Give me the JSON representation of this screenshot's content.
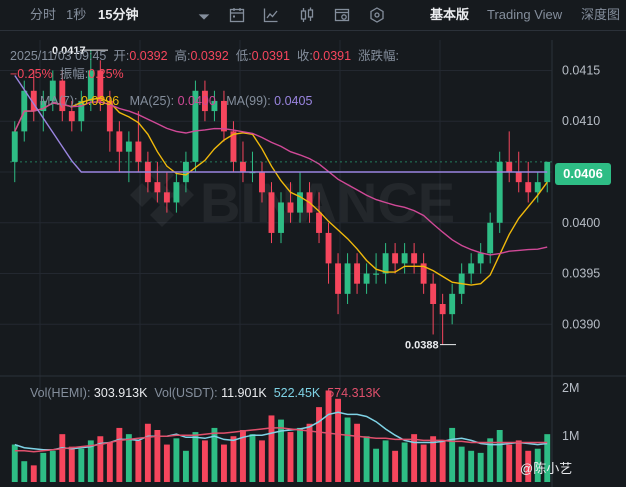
{
  "toolbar": {
    "time_label": "分时",
    "sec_label": "1秒",
    "interval_label": "15分钟",
    "chevron_icon": "chevron-down-icon",
    "icons": [
      "calendar-indicator-icon",
      "line-chart-icon",
      "candlestick-icon",
      "settings-chart-icon",
      "hexagon-settings-icon"
    ],
    "view_basic": "基本版",
    "view_tradingview": "Trading View",
    "view_depth": "深度图"
  },
  "ohlc": {
    "datetime": "2025/11/03 09:45",
    "open_label": "开:",
    "open": "0.0392",
    "high_label": "高:",
    "high": "0.0392",
    "low_label": "低:",
    "low": "0.0391",
    "close_label": "收:",
    "close": "0.0391",
    "change_label": "涨跌幅:",
    "change": "−0.25%",
    "amp_label": "振幅:",
    "amp": "0.25%"
  },
  "ma": {
    "ma7_label": "MA(7):",
    "ma7": "0.0396",
    "ma25_label": "MA(25):",
    "ma25": "0.0400",
    "ma99_label": "MA(99):",
    "ma99": "0.0405"
  },
  "volume": {
    "hemi_label": "Vol(HEMI):",
    "hemi": "303.913K",
    "usdt_label": "Vol(USDT):",
    "usdt": "11.901K",
    "v1": "522.45K",
    "v2": "574.313K"
  },
  "markers": {
    "high": "0.0417",
    "low": "0.0388",
    "current": "0.0406"
  },
  "watermark": "@陈小艺",
  "colors": {
    "up": "#2ebd85",
    "down": "#f6465d",
    "ma7": "#f0b90b",
    "ma25": "#d04997",
    "ma99": "#9a85e0",
    "vol_ma1": "#7fd3e6",
    "vol_ma2": "#e0506c"
  },
  "chart_data": {
    "type": "candlestick",
    "price_axis": [
      "0.0415",
      "0.0410",
      "0.0405",
      "0.0400",
      "0.0395",
      "0.0390"
    ],
    "volume_axis": [
      "2M",
      "1M"
    ],
    "ylim": [
      0.03855,
      0.0418
    ],
    "candles": [
      [
        0.0406,
        0.041,
        0.0404,
        0.0409
      ],
      [
        0.0409,
        0.0414,
        0.0408,
        0.0413
      ],
      [
        0.0413,
        0.0415,
        0.041,
        0.0411
      ],
      [
        0.0411,
        0.0413,
        0.0409,
        0.0412
      ],
      [
        0.0412,
        0.0415,
        0.0411,
        0.0414
      ],
      [
        0.0414,
        0.0415,
        0.041,
        0.0411
      ],
      [
        0.0411,
        0.0412,
        0.0409,
        0.041
      ],
      [
        0.041,
        0.0413,
        0.0409,
        0.0412
      ],
      [
        0.0412,
        0.0417,
        0.0411,
        0.0415
      ],
      [
        0.0415,
        0.0416,
        0.0411,
        0.0412
      ],
      [
        0.0412,
        0.0413,
        0.0407,
        0.0409
      ],
      [
        0.0409,
        0.041,
        0.0405,
        0.0407
      ],
      [
        0.0407,
        0.0409,
        0.0404,
        0.0408
      ],
      [
        0.0408,
        0.0411,
        0.0405,
        0.0406
      ],
      [
        0.0406,
        0.0407,
        0.0403,
        0.0404
      ],
      [
        0.0404,
        0.0406,
        0.0402,
        0.0403
      ],
      [
        0.0403,
        0.0405,
        0.0401,
        0.0402
      ],
      [
        0.0402,
        0.0405,
        0.0401,
        0.0404
      ],
      [
        0.0404,
        0.0407,
        0.0403,
        0.0406
      ],
      [
        0.0406,
        0.0414,
        0.0405,
        0.0413
      ],
      [
        0.0413,
        0.0414,
        0.041,
        0.0411
      ],
      [
        0.0411,
        0.0413,
        0.041,
        0.0412
      ],
      [
        0.0412,
        0.0413,
        0.0408,
        0.0409
      ],
      [
        0.0409,
        0.041,
        0.0405,
        0.0406
      ],
      [
        0.0406,
        0.0408,
        0.0404,
        0.0405
      ],
      [
        0.0405,
        0.0407,
        0.0404,
        0.0405
      ],
      [
        0.0405,
        0.0406,
        0.0402,
        0.0403
      ],
      [
        0.0403,
        0.0404,
        0.0398,
        0.0399
      ],
      [
        0.0399,
        0.0403,
        0.0398,
        0.0402
      ],
      [
        0.0402,
        0.0404,
        0.04,
        0.0401
      ],
      [
        0.0401,
        0.0405,
        0.04,
        0.0403
      ],
      [
        0.0403,
        0.0404,
        0.04,
        0.0401
      ],
      [
        0.0401,
        0.0403,
        0.0398,
        0.0399
      ],
      [
        0.0399,
        0.04,
        0.0394,
        0.0396
      ],
      [
        0.0396,
        0.0397,
        0.0391,
        0.0393
      ],
      [
        0.0393,
        0.0397,
        0.0392,
        0.0396
      ],
      [
        0.0396,
        0.0397,
        0.0393,
        0.0394
      ],
      [
        0.0394,
        0.0396,
        0.0393,
        0.0395
      ],
      [
        0.0395,
        0.0397,
        0.0394,
        0.0395
      ],
      [
        0.0395,
        0.0398,
        0.0394,
        0.0397
      ],
      [
        0.0397,
        0.0398,
        0.0395,
        0.0396
      ],
      [
        0.0396,
        0.0398,
        0.0395,
        0.0397
      ],
      [
        0.0397,
        0.0398,
        0.0395,
        0.0396
      ],
      [
        0.0396,
        0.0397,
        0.0393,
        0.0394
      ],
      [
        0.0394,
        0.0395,
        0.0389,
        0.0392
      ],
      [
        0.0392,
        0.0393,
        0.0388,
        0.0391
      ],
      [
        0.0391,
        0.0394,
        0.039,
        0.0393
      ],
      [
        0.0393,
        0.0396,
        0.0392,
        0.0395
      ],
      [
        0.0395,
        0.0397,
        0.0394,
        0.0396
      ],
      [
        0.0396,
        0.0398,
        0.0395,
        0.0397
      ],
      [
        0.0397,
        0.0401,
        0.0396,
        0.04
      ],
      [
        0.04,
        0.0407,
        0.0399,
        0.0406
      ],
      [
        0.0406,
        0.0409,
        0.0404,
        0.0405
      ],
      [
        0.0405,
        0.0407,
        0.0403,
        0.0404
      ],
      [
        0.0404,
        0.0406,
        0.0402,
        0.0403
      ],
      [
        0.0403,
        0.0405,
        0.0402,
        0.0404
      ],
      [
        0.0404,
        0.0406,
        0.0403,
        0.0406
      ]
    ],
    "volumes": [
      0.36,
      0.2,
      0.16,
      0.28,
      0.3,
      0.46,
      0.34,
      0.32,
      0.4,
      0.44,
      0.38,
      0.52,
      0.46,
      0.4,
      0.56,
      0.5,
      0.36,
      0.42,
      0.3,
      0.48,
      0.4,
      0.52,
      0.36,
      0.44,
      0.5,
      0.46,
      0.4,
      0.64,
      0.6,
      0.48,
      0.52,
      0.56,
      0.72,
      0.88,
      0.8,
      0.62,
      0.56,
      0.44,
      0.32,
      0.4,
      0.3,
      0.38,
      0.46,
      0.36,
      0.44,
      0.4,
      0.52,
      0.34,
      0.3,
      0.28,
      0.42,
      0.5,
      0.36,
      0.4,
      0.3,
      0.32,
      0.46
    ],
    "volume_ma7": [
      0.36,
      0.33,
      0.32,
      0.31,
      0.31,
      0.33,
      0.32,
      0.33,
      0.34,
      0.37,
      0.38,
      0.41,
      0.41,
      0.4,
      0.44,
      0.44,
      0.44,
      0.46,
      0.43,
      0.43,
      0.42,
      0.44,
      0.41,
      0.4,
      0.43,
      0.45,
      0.45,
      0.47,
      0.49,
      0.5,
      0.51,
      0.53,
      0.58,
      0.65,
      0.67,
      0.65,
      0.65,
      0.63,
      0.58,
      0.51,
      0.45,
      0.4,
      0.38,
      0.38,
      0.38,
      0.39,
      0.41,
      0.42,
      0.4,
      0.37,
      0.36,
      0.36,
      0.37,
      0.38,
      0.37,
      0.36,
      0.37
    ],
    "volume_ma25": [
      0.3,
      0.3,
      0.29,
      0.3,
      0.31,
      0.32,
      0.33,
      0.34,
      0.35,
      0.36,
      0.38,
      0.4,
      0.41,
      0.42,
      0.43,
      0.44,
      0.44,
      0.45,
      0.45,
      0.45,
      0.46,
      0.47,
      0.47,
      0.48,
      0.49,
      0.5,
      0.51,
      0.52,
      0.52,
      0.51,
      0.5,
      0.49,
      0.48,
      0.47,
      0.46,
      0.45,
      0.44,
      0.43,
      0.42,
      0.42,
      0.41,
      0.41,
      0.41,
      0.4,
      0.4,
      0.4,
      0.39,
      0.39,
      0.38,
      0.38,
      0.38,
      0.38,
      0.38,
      0.38,
      0.38,
      0.38,
      0.38
    ]
  }
}
